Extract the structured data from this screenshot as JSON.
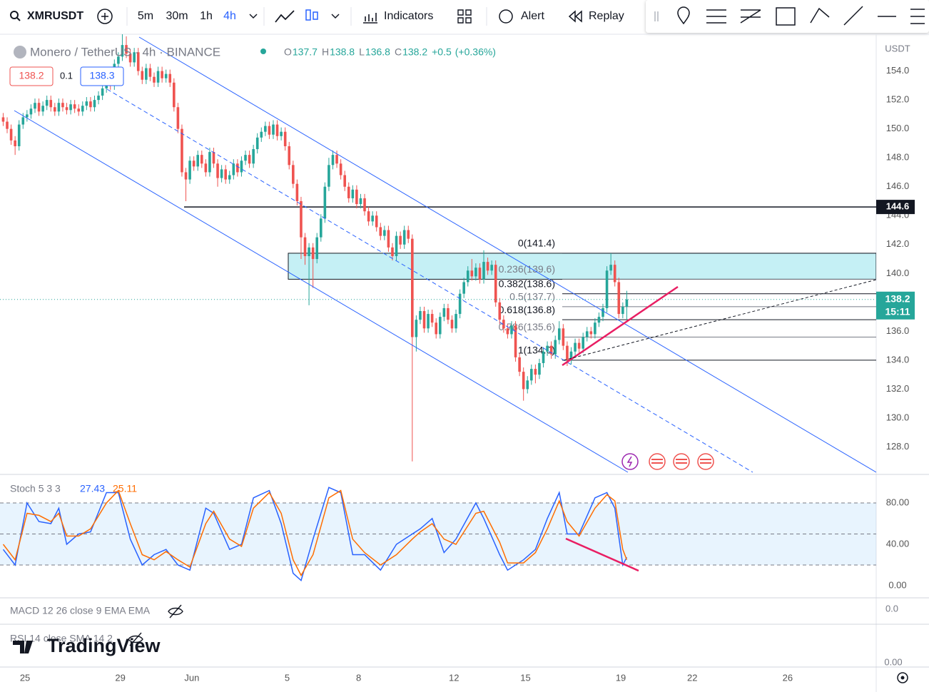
{
  "toolbar": {
    "symbol": "XMRUSDT",
    "intervals": [
      "5m",
      "30m",
      "1h",
      "4h"
    ],
    "active_interval": "4h",
    "buttons": [
      "Indicators",
      "Alert",
      "Replay"
    ]
  },
  "header": {
    "name": "Monero / TetherUS · 4h · BINANCE",
    "ohlc": [
      {
        "key": "O",
        "value": 137.7
      },
      {
        "key": "H",
        "value": 138.8
      },
      {
        "key": "L",
        "value": 136.8
      },
      {
        "key": "C",
        "value": 138.2
      }
    ],
    "change": {
      "value": 0.5,
      "label": "+0.5"
    },
    "change_pct": {
      "value": 0.36,
      "label": "(+0.36%)"
    },
    "bid": 138.2,
    "spread": 0.1,
    "ask": 138.3,
    "currency": "USDT"
  },
  "chart_data": [
    {
      "type": "candlestick",
      "up_color": "#26a69a",
      "down_color": "#ef5350",
      "open": [
        150.8,
        150.5,
        150.0,
        149.2,
        148.8,
        150.3,
        150.8,
        151.0,
        151.4,
        151.8,
        151.2,
        151.6,
        152.0,
        151.5,
        151.2,
        151.8,
        151.5,
        151.3,
        151.7,
        151.4,
        151.2,
        151.6,
        151.9,
        151.5,
        152.0,
        152.3,
        152.8,
        153.2,
        153.0,
        154.5,
        155.0,
        155.8,
        155.2,
        154.6,
        155.3,
        154.0,
        153.4,
        154.2,
        153.6,
        153.2,
        154.0,
        153.5,
        153.8,
        153.2,
        151.5,
        150.0,
        147.0,
        146.5,
        147.8,
        147.4,
        148.2,
        147.6,
        147.0,
        148.4,
        147.6,
        146.6,
        147.2,
        146.5,
        146.8,
        147.6,
        147.0,
        147.8,
        148.2,
        147.6,
        148.6,
        149.4,
        149.8,
        150.2,
        149.6,
        150.3,
        149.5,
        149.8,
        148.8,
        147.5,
        146.2,
        145.0,
        142.5,
        141.2,
        141.8,
        141.0,
        142.5,
        143.8,
        146.0,
        147.5,
        148.2,
        147.6,
        146.8,
        146.0,
        145.2,
        145.8,
        144.8,
        145.2,
        144.3,
        143.6,
        144.0,
        143.2,
        142.6,
        143.0,
        141.8,
        141.2,
        142.6,
        142.0,
        143.0,
        142.4,
        135.6,
        136.8,
        137.4,
        136.2,
        137.2,
        136.6,
        135.8,
        137.0,
        137.6,
        136.8,
        136.2,
        137.2,
        138.6,
        139.4,
        140.2,
        139.8,
        140.4,
        139.6,
        140.8,
        140.2,
        140.6,
        138.0,
        136.8,
        136.2,
        135.8,
        136.4,
        134.2,
        133.2,
        132.0,
        132.6,
        133.4,
        133.0,
        133.8,
        134.6,
        135.0,
        134.4,
        135.4,
        136.2,
        135.0,
        134.0,
        134.6,
        135.2,
        134.8,
        135.6,
        136.0,
        135.8,
        136.6,
        137.0,
        137.6,
        140.2,
        140.6,
        139.4,
        137.2,
        137.7
      ],
      "high": [
        151.1,
        150.8,
        150.3,
        149.5,
        150.6,
        151.1,
        151.3,
        151.7,
        152.1,
        152.1,
        151.9,
        152.3,
        152.3,
        151.8,
        152.1,
        152.1,
        151.8,
        152.0,
        152.0,
        151.7,
        151.9,
        152.2,
        152.2,
        152.3,
        152.6,
        153.1,
        153.5,
        153.5,
        154.8,
        155.3,
        156.6,
        156.4,
        155.5,
        155.6,
        155.6,
        154.3,
        154.5,
        154.5,
        153.9,
        154.3,
        154.3,
        154.1,
        154.1,
        153.5,
        151.8,
        150.3,
        147.3,
        148.1,
        148.1,
        148.5,
        148.5,
        147.9,
        148.7,
        148.7,
        147.9,
        147.5,
        147.5,
        147.1,
        147.9,
        147.9,
        148.1,
        148.5,
        148.5,
        148.9,
        149.7,
        150.1,
        150.5,
        150.5,
        150.6,
        150.6,
        150.1,
        150.1,
        149.1,
        147.8,
        146.5,
        145.3,
        142.8,
        142.1,
        142.1,
        142.8,
        144.1,
        146.3,
        148.0,
        148.5,
        148.5,
        147.9,
        147.1,
        146.3,
        146.1,
        146.1,
        145.5,
        145.5,
        144.6,
        144.3,
        144.3,
        143.5,
        143.3,
        143.3,
        142.1,
        142.9,
        142.9,
        143.3,
        143.3,
        142.7,
        137.1,
        137.7,
        137.7,
        137.5,
        137.5,
        136.9,
        137.3,
        137.9,
        137.9,
        137.1,
        137.5,
        138.9,
        139.7,
        140.5,
        141.0,
        140.7,
        140.7,
        141.6,
        141.1,
        140.9,
        140.9,
        138.3,
        137.1,
        136.5,
        136.7,
        136.7,
        134.5,
        133.5,
        132.9,
        133.7,
        133.7,
        134.1,
        134.9,
        135.3,
        135.3,
        135.7,
        136.7,
        136.5,
        135.3,
        134.9,
        135.5,
        135.5,
        135.9,
        136.3,
        136.3,
        136.9,
        137.3,
        137.9,
        140.5,
        141.4,
        140.9,
        139.7,
        138.0,
        138.8
      ],
      "low": [
        150.2,
        149.7,
        148.9,
        148.2,
        148.5,
        150.0,
        150.5,
        150.7,
        151.1,
        150.9,
        150.9,
        151.3,
        151.2,
        150.9,
        150.9,
        151.2,
        151.0,
        151.0,
        151.1,
        150.9,
        150.9,
        151.3,
        151.2,
        151.2,
        151.7,
        152.0,
        152.5,
        152.7,
        152.7,
        154.2,
        154.7,
        154.9,
        154.3,
        154.3,
        153.7,
        153.1,
        153.1,
        153.3,
        152.9,
        152.9,
        153.2,
        153.2,
        152.9,
        151.2,
        149.7,
        146.7,
        145.0,
        146.2,
        147.1,
        147.1,
        147.3,
        146.7,
        146.7,
        147.3,
        146.0,
        146.3,
        146.2,
        146.2,
        146.5,
        146.7,
        146.7,
        147.5,
        147.3,
        147.3,
        148.3,
        149.1,
        149.5,
        149.3,
        149.3,
        149.2,
        149.2,
        148.5,
        147.2,
        145.9,
        144.7,
        141.0,
        140.6,
        137.8,
        139.0,
        140.7,
        142.2,
        143.5,
        145.7,
        147.2,
        147.3,
        146.5,
        145.7,
        144.9,
        144.9,
        144.5,
        144.5,
        144.0,
        143.3,
        143.3,
        142.9,
        142.3,
        142.3,
        141.5,
        140.9,
        140.9,
        141.7,
        141.7,
        142.1,
        127.0,
        134.6,
        136.5,
        135.9,
        135.9,
        136.3,
        135.5,
        135.5,
        136.7,
        136.5,
        135.9,
        135.9,
        136.9,
        138.3,
        139.1,
        139.5,
        139.5,
        139.3,
        139.3,
        139.9,
        139.9,
        137.7,
        136.5,
        135.9,
        135.5,
        135.5,
        133.9,
        132.9,
        131.2,
        131.7,
        132.3,
        132.4,
        132.7,
        133.5,
        134.3,
        134.1,
        134.1,
        135.1,
        134.7,
        133.6,
        133.7,
        134.3,
        134.5,
        134.5,
        135.3,
        135.5,
        135.5,
        136.3,
        136.7,
        137.3,
        139.9,
        139.1,
        136.9,
        136.9,
        136.8
      ],
      "close": [
        150.5,
        150.0,
        149.2,
        148.8,
        150.3,
        150.8,
        151.0,
        151.4,
        151.8,
        151.2,
        151.6,
        152.0,
        151.5,
        151.2,
        151.8,
        151.5,
        151.3,
        151.7,
        151.4,
        151.2,
        151.6,
        151.9,
        151.5,
        152.0,
        152.3,
        152.8,
        153.2,
        153.0,
        154.5,
        155.0,
        155.8,
        155.2,
        154.6,
        155.3,
        154.0,
        153.4,
        154.2,
        153.6,
        153.2,
        154.0,
        153.5,
        153.8,
        153.2,
        151.5,
        150.0,
        147.0,
        146.5,
        147.8,
        147.4,
        148.2,
        147.6,
        147.0,
        148.4,
        147.6,
        146.6,
        147.2,
        146.5,
        146.8,
        147.6,
        147.0,
        147.8,
        148.2,
        147.6,
        148.6,
        149.4,
        149.8,
        150.2,
        149.6,
        150.3,
        149.5,
        149.8,
        148.8,
        147.5,
        146.2,
        145.0,
        142.5,
        141.2,
        141.8,
        141.0,
        142.5,
        143.8,
        146.0,
        147.5,
        148.2,
        147.6,
        146.8,
        146.0,
        145.2,
        145.8,
        144.8,
        145.2,
        144.3,
        143.6,
        144.0,
        143.2,
        142.6,
        143.0,
        141.8,
        141.2,
        142.6,
        142.0,
        143.0,
        142.4,
        135.6,
        136.8,
        137.4,
        136.2,
        137.2,
        136.6,
        135.8,
        137.0,
        137.6,
        136.8,
        136.2,
        137.2,
        138.6,
        139.4,
        140.2,
        139.8,
        140.4,
        139.6,
        140.8,
        140.2,
        140.6,
        138.0,
        136.8,
        136.2,
        135.8,
        136.4,
        134.2,
        133.2,
        132.0,
        132.6,
        133.4,
        133.0,
        133.8,
        134.6,
        135.0,
        134.4,
        135.4,
        136.2,
        135.0,
        134.0,
        134.6,
        135.2,
        134.8,
        135.6,
        136.0,
        135.8,
        136.6,
        137.0,
        137.6,
        140.2,
        140.6,
        139.4,
        137.2,
        137.7,
        138.2
      ],
      "xlim": [
        -0.3,
        220.3
      ],
      "xticks": [
        {
          "value": 6,
          "label": "25"
        },
        {
          "value": 30,
          "label": "29"
        },
        {
          "value": 48,
          "label": "Jun"
        },
        {
          "value": 72,
          "label": "5"
        },
        {
          "value": 90,
          "label": "8"
        },
        {
          "value": 114,
          "label": "12"
        },
        {
          "value": 132,
          "label": "15"
        },
        {
          "value": 156,
          "label": "19"
        },
        {
          "value": 174,
          "label": "22"
        },
        {
          "value": 198,
          "label": "26"
        }
      ],
      "ylim": [
        126.2,
        156.2
      ],
      "yticks": [
        {
          "value": 128,
          "label": "128.0"
        },
        {
          "value": 130,
          "label": "130.0"
        },
        {
          "value": 132,
          "label": "132.0"
        },
        {
          "value": 134,
          "label": "134.0"
        },
        {
          "value": 136,
          "label": "136.0"
        },
        {
          "value": 138,
          "label": "138.0"
        },
        {
          "value": 140,
          "label": "140.0"
        },
        {
          "value": 142,
          "label": "142.0"
        },
        {
          "value": 144,
          "label": "144.0"
        },
        {
          "value": 146,
          "label": "146.0"
        },
        {
          "value": 148,
          "label": "148.0"
        },
        {
          "value": 150,
          "label": "150.0"
        },
        {
          "value": 152,
          "label": "152.0"
        },
        {
          "value": 154,
          "label": "154.0"
        }
      ],
      "hline": 144.6,
      "zone": [
        139.6,
        141.4
      ],
      "fib": [
        {
          "value": 141.4,
          "label": "0(141.4)",
          "color": "#131722"
        },
        {
          "value": 139.6,
          "label": "0.236(139.6)",
          "color": "#787b86"
        },
        {
          "value": 138.6,
          "label": "0.382(138.6)",
          "color": "#131722"
        },
        {
          "value": 137.7,
          "label": "0.5(137.7)",
          "color": "#787b86"
        },
        {
          "value": 136.8,
          "label": "0.618(136.8)",
          "color": "#131722"
        },
        {
          "value": 135.6,
          "label": "0.786(135.6)",
          "color": "#787b86"
        },
        {
          "value": 134.0,
          "label": "1(134.0)",
          "color": "#131722"
        }
      ],
      "last_price": 138.2,
      "countdown": "15:11"
    },
    {
      "type": "line",
      "title": "Stoch 5 3 3",
      "x": [
        0,
        3,
        6,
        9,
        12,
        14,
        16,
        19,
        22,
        26,
        29,
        32,
        35,
        38,
        41,
        44,
        47,
        51,
        53,
        57,
        60,
        63,
        67,
        70,
        73,
        75,
        78,
        82,
        85,
        88,
        91,
        95,
        99,
        103,
        105,
        108,
        111,
        114,
        119,
        121,
        125,
        127,
        131,
        134,
        137,
        140,
        142,
        145,
        149,
        152,
        154,
        156,
        157
      ],
      "series": [
        {
          "color": "#2962ff",
          "values": [
            35,
            20,
            80,
            62,
            60,
            75,
            40,
            50,
            52,
            90,
            90,
            45,
            20,
            30,
            35,
            20,
            15,
            75,
            70,
            35,
            40,
            85,
            92,
            60,
            12,
            5,
            45,
            95,
            90,
            30,
            30,
            15,
            40,
            50,
            55,
            65,
            32,
            45,
            80,
            65,
            30,
            15,
            25,
            35,
            65,
            90,
            50,
            50,
            85,
            90,
            75,
            20,
            27.43
          ]
        },
        {
          "color": "#ff6d00",
          "values": [
            40,
            25,
            70,
            68,
            62,
            70,
            48,
            48,
            55,
            80,
            92,
            60,
            30,
            25,
            33,
            25,
            18,
            60,
            72,
            45,
            38,
            75,
            90,
            70,
            25,
            10,
            30,
            85,
            92,
            45,
            32,
            20,
            30,
            45,
            52,
            60,
            45,
            40,
            70,
            72,
            42,
            22,
            22,
            32,
            55,
            82,
            62,
            48,
            75,
            88,
            82,
            35,
            25.11
          ]
        }
      ],
      "ylim": [
        -9.7,
        102.8
      ],
      "yticks": [
        {
          "value": 0,
          "label": "0.00"
        },
        {
          "value": 40,
          "label": "40.00"
        },
        {
          "value": 80,
          "label": "80.00"
        }
      ],
      "band": [
        20,
        80
      ],
      "dashed": [
        20,
        50,
        80
      ]
    }
  ],
  "panes": [
    {
      "title": "MACD 12 26 close 9 EMA EMA",
      "tick": {
        "value": 0,
        "label": "0.0"
      }
    },
    {
      "title": "RSI 14 close SMA 14 2",
      "tick": {
        "value": 0,
        "label": "0.00"
      }
    }
  ],
  "watermark": "TradingView"
}
